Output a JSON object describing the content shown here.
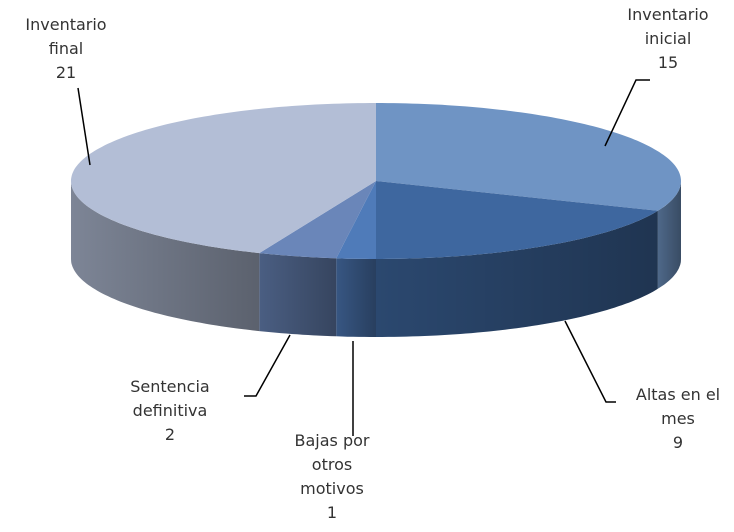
{
  "chart_data": {
    "type": "pie3d",
    "categories": [
      "Inventario inicial",
      "Altas en el mes",
      "Bajas por otros motivos",
      "Sentencia definitiva",
      "Inventario final"
    ],
    "values": [
      15,
      9,
      1,
      2,
      21
    ],
    "colors": [
      "#6f94c4",
      "#3e679f",
      "#4f7bb9",
      "#6a86b9",
      "#b3bed6"
    ]
  }
}
